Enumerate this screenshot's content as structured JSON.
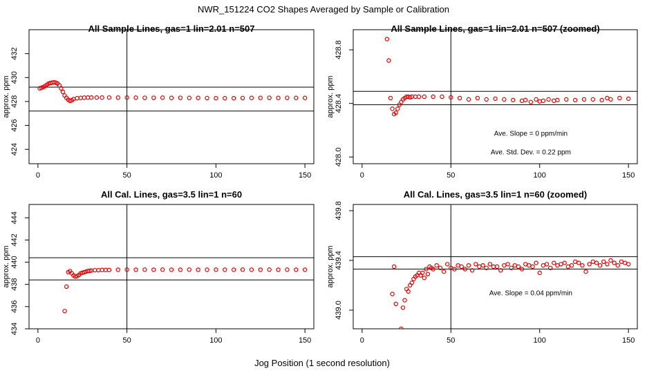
{
  "figure": {
    "title": "NWR_151224  CO2 Shapes Averaged by Sample or Calibration",
    "xlabel": "Jog Position (1 second resolution)"
  },
  "colors": {
    "points": "#e00000",
    "lines": "#000000"
  },
  "chart_data": [
    {
      "type": "scatter",
      "title": "All Sample Lines, gas=1 lin=2.01 n=507",
      "ylabel": "approx. ppm",
      "xlim": [
        -5,
        155
      ],
      "ylim": [
        422.8,
        434.0
      ],
      "xticks": [
        0,
        50,
        100,
        150
      ],
      "xtick_labels": [
        "0",
        "50",
        "100",
        "150"
      ],
      "yticks": [
        424,
        426,
        428,
        430,
        432
      ],
      "ytick_labels": [
        "424",
        "426",
        "428",
        "430",
        "432"
      ],
      "hlines": [
        429.2,
        427.2
      ],
      "vline": 50,
      "annotations": [],
      "series": [
        {
          "x": [
            1,
            2,
            3,
            4,
            5,
            6,
            7,
            8,
            9,
            10,
            11,
            12,
            13,
            14,
            15,
            16,
            17,
            18,
            19,
            20,
            22,
            24,
            26,
            28,
            30,
            33,
            36,
            40,
            45,
            50,
            55,
            60,
            65,
            70,
            75,
            80,
            85,
            90,
            95,
            100,
            105,
            110,
            115,
            120,
            125,
            130,
            135,
            140,
            145,
            150
          ],
          "y": [
            429.1,
            429.15,
            429.2,
            429.3,
            429.4,
            429.5,
            429.55,
            429.58,
            429.6,
            429.58,
            429.5,
            429.35,
            429.1,
            428.8,
            428.5,
            428.3,
            428.15,
            428.05,
            428.1,
            428.2,
            428.28,
            428.3,
            428.32,
            428.33,
            428.33,
            428.33,
            428.33,
            428.33,
            428.32,
            428.33,
            428.32,
            428.31,
            428.31,
            428.32,
            428.3,
            428.31,
            428.3,
            428.3,
            428.29,
            428.28,
            428.28,
            428.28,
            428.29,
            428.3,
            428.3,
            428.31,
            428.3,
            428.31,
            428.3,
            428.3
          ]
        }
      ]
    },
    {
      "type": "scatter",
      "title": "All Sample Lines, gas=1 lin=2.01 n=507 (zoomed)",
      "ylabel": "approx. ppm",
      "xlim": [
        -5,
        155
      ],
      "ylim": [
        427.95,
        428.95
      ],
      "xticks": [
        0,
        50,
        100,
        150
      ],
      "xtick_labels": [
        "0",
        "50",
        "100",
        "150"
      ],
      "yticks": [
        428.0,
        428.4,
        428.8
      ],
      "ytick_labels": [
        "428.0",
        "428.4",
        "428.8"
      ],
      "hlines": [
        428.49,
        428.39
      ],
      "vline": 50,
      "annotations": [
        {
          "text": "Ave. Slope =  0  ppm/min",
          "x": 95,
          "y": 428.16
        },
        {
          "text": "Ave. Std. Dev. =  0.22  ppm",
          "x": 95,
          "y": 428.02
        }
      ],
      "series": [
        {
          "x": [
            14,
            15,
            16,
            17,
            18,
            19,
            20,
            21,
            22,
            23,
            24,
            25,
            26,
            27,
            28,
            30,
            32,
            35,
            40,
            45,
            50,
            55,
            60,
            65,
            70,
            75,
            80,
            85,
            90,
            92,
            95,
            98,
            100,
            102,
            105,
            108,
            110,
            115,
            120,
            125,
            130,
            135,
            138,
            140,
            145,
            150
          ],
          "y": [
            428.88,
            428.72,
            428.44,
            428.36,
            428.32,
            428.33,
            428.36,
            428.39,
            428.41,
            428.43,
            428.44,
            428.45,
            428.45,
            428.445,
            428.45,
            428.45,
            428.45,
            428.45,
            428.45,
            428.45,
            428.445,
            428.44,
            428.43,
            428.44,
            428.43,
            428.435,
            428.43,
            428.425,
            428.42,
            428.425,
            428.41,
            428.43,
            428.415,
            428.42,
            428.43,
            428.42,
            428.425,
            428.43,
            428.425,
            428.43,
            428.43,
            428.425,
            428.44,
            428.43,
            428.44,
            428.435
          ]
        }
      ]
    },
    {
      "type": "scatter",
      "title": "All Cal. Lines, gas=3.5 lin=1 n=60",
      "ylabel": "approx. ppm",
      "xlim": [
        -5,
        155
      ],
      "ylim": [
        434.0,
        445.2
      ],
      "xticks": [
        0,
        50,
        100,
        150
      ],
      "xtick_labels": [
        "0",
        "50",
        "100",
        "150"
      ],
      "yticks": [
        434,
        436,
        438,
        440,
        442,
        444
      ],
      "ytick_labels": [
        "434",
        "436",
        "438",
        "440",
        "442",
        "444"
      ],
      "hlines": [
        440.4,
        438.4
      ],
      "vline": 50,
      "annotations": [],
      "series": [
        {
          "x": [
            15,
            16,
            17,
            18,
            19,
            20,
            21,
            22,
            23,
            24,
            25,
            26,
            27,
            28,
            29,
            30,
            32,
            34,
            36,
            38,
            40,
            45,
            50,
            55,
            60,
            65,
            70,
            75,
            80,
            85,
            90,
            95,
            100,
            105,
            110,
            115,
            120,
            125,
            130,
            135,
            140,
            145,
            150
          ],
          "y": [
            435.6,
            437.8,
            439.1,
            439.2,
            439.0,
            438.8,
            438.7,
            438.75,
            438.85,
            439.0,
            439.05,
            439.1,
            439.15,
            439.2,
            439.22,
            439.25,
            439.28,
            439.28,
            439.3,
            439.3,
            439.3,
            439.32,
            439.33,
            439.32,
            439.33,
            439.32,
            439.33,
            439.32,
            439.32,
            439.33,
            439.32,
            439.32,
            439.33,
            439.32,
            439.32,
            439.33,
            439.32,
            439.32,
            439.33,
            439.32,
            439.33,
            439.32,
            439.32
          ]
        }
      ]
    },
    {
      "type": "scatter",
      "title": "All Cal. Lines, gas=3.5 lin=1 n=60 (zoomed)",
      "ylabel": "approx. ppm",
      "xlim": [
        -5,
        155
      ],
      "ylim": [
        438.85,
        439.85
      ],
      "xticks": [
        0,
        50,
        100,
        150
      ],
      "xtick_labels": [
        "0",
        "50",
        "100",
        "150"
      ],
      "yticks": [
        439.0,
        439.4,
        439.8
      ],
      "ytick_labels": [
        "439.0",
        "439.4",
        "439.8"
      ],
      "hlines": [
        439.43,
        439.33
      ],
      "vline": 50,
      "annotations": [
        {
          "text": "Ave. Slope =  0.04  ppm/min",
          "x": 95,
          "y": 439.12
        }
      ],
      "series": [
        {
          "x": [
            17,
            18,
            19,
            22,
            23,
            24,
            25,
            26,
            27,
            28,
            29,
            30,
            31,
            32,
            33,
            34,
            35,
            36,
            37,
            38,
            39,
            40,
            42,
            44,
            46,
            48,
            50,
            52,
            54,
            56,
            58,
            60,
            62,
            64,
            66,
            68,
            70,
            72,
            74,
            76,
            78,
            80,
            82,
            84,
            86,
            88,
            90,
            92,
            94,
            96,
            98,
            100,
            102,
            104,
            106,
            108,
            110,
            112,
            114,
            116,
            118,
            120,
            122,
            124,
            126,
            128,
            130,
            132,
            134,
            136,
            138,
            140,
            142,
            144,
            146,
            148,
            150
          ],
          "y": [
            439.13,
            439.35,
            439.05,
            438.85,
            439.02,
            439.08,
            439.17,
            439.15,
            439.2,
            439.22,
            439.25,
            439.27,
            439.28,
            439.3,
            439.28,
            439.3,
            439.26,
            439.33,
            439.29,
            439.35,
            439.34,
            439.33,
            439.36,
            439.34,
            439.31,
            439.37,
            439.34,
            439.33,
            439.36,
            439.35,
            439.33,
            439.36,
            439.32,
            439.37,
            439.35,
            439.36,
            439.34,
            439.37,
            439.35,
            439.35,
            439.32,
            439.36,
            439.37,
            439.34,
            439.36,
            439.35,
            439.33,
            439.37,
            439.36,
            439.35,
            439.38,
            439.3,
            439.36,
            439.37,
            439.34,
            439.38,
            439.36,
            439.37,
            439.38,
            439.35,
            439.36,
            439.39,
            439.38,
            439.36,
            439.31,
            439.37,
            439.39,
            439.38,
            439.36,
            439.39,
            439.37,
            439.4,
            439.38,
            439.36,
            439.39,
            439.38,
            439.37
          ]
        }
      ]
    }
  ]
}
